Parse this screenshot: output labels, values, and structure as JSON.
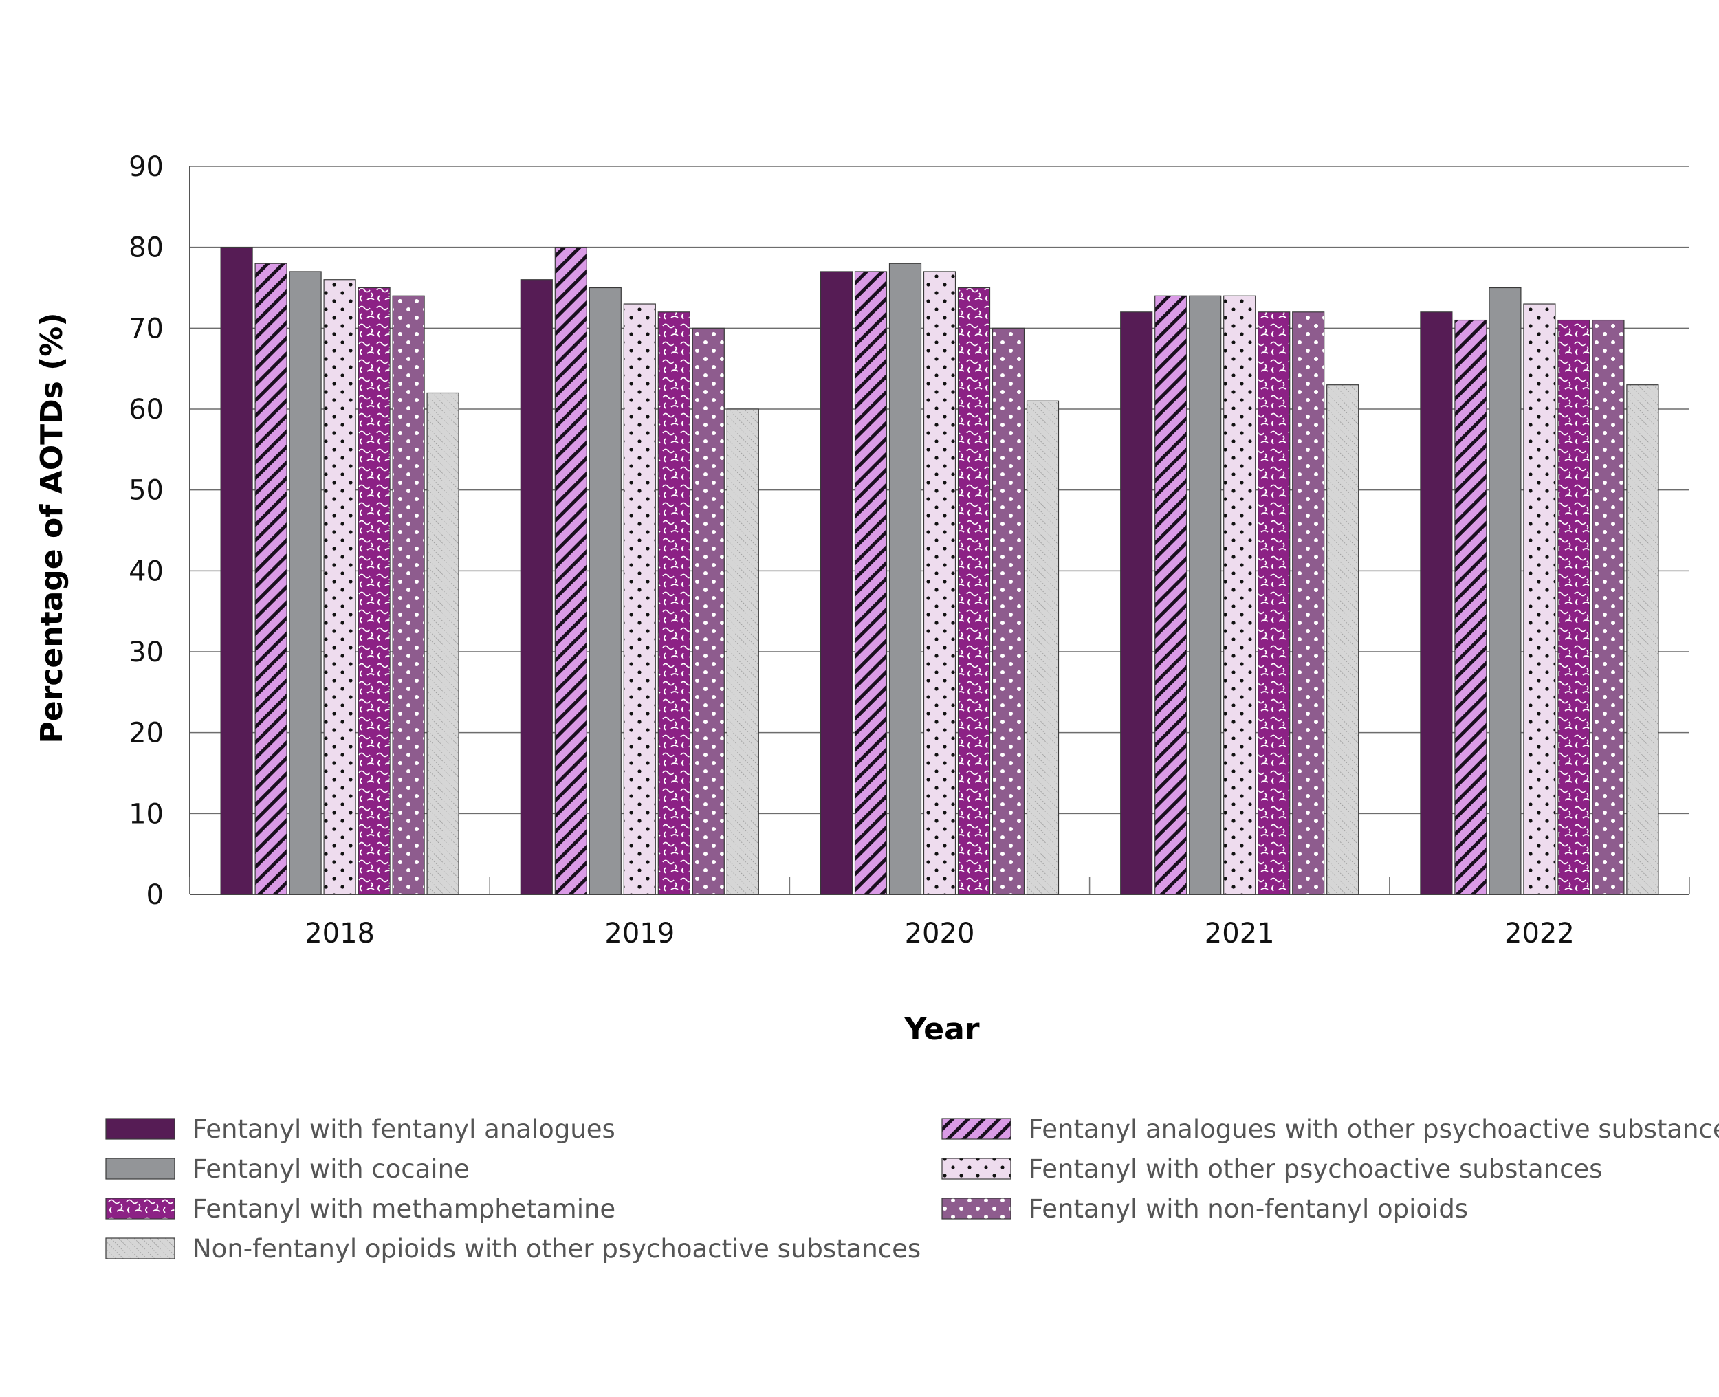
{
  "chart_data": {
    "type": "bar",
    "title": "",
    "xlabel": "Year",
    "ylabel": "Percentage of AOTDs (%)",
    "ylim": [
      0,
      90
    ],
    "yticks": [
      0,
      10,
      20,
      30,
      40,
      50,
      60,
      70,
      80,
      90
    ],
    "grid": true,
    "legend_position": "bottom",
    "categories": [
      "2018",
      "2019",
      "2020",
      "2021",
      "2022"
    ],
    "series": [
      {
        "name": "Fentanyl with fentanyl analogues",
        "values": [
          80,
          76,
          77,
          72,
          72
        ],
        "color": "#561C55",
        "pattern": "solid"
      },
      {
        "name": "Fentanyl analogues with other psychoactive substances",
        "values": [
          78,
          80,
          77,
          74,
          71
        ],
        "color": "#DA9BE6",
        "pattern": "diagonal-stripes"
      },
      {
        "name": "Fentanyl with cocaine",
        "values": [
          77,
          75,
          78,
          74,
          75
        ],
        "color": "#939598",
        "pattern": "solid"
      },
      {
        "name": "Fentanyl with other psychoactive substances",
        "values": [
          76,
          73,
          77,
          74,
          73
        ],
        "color": "#EEDCEE",
        "pattern": "dots"
      },
      {
        "name": "Fentanyl with methamphetamine",
        "values": [
          75,
          72,
          75,
          72,
          71
        ],
        "color": "#8C2185",
        "pattern": "squiggles"
      },
      {
        "name": "Fentanyl with non-fentanyl opioids",
        "values": [
          74,
          70,
          70,
          72,
          71
        ],
        "color": "#8E5C8E",
        "pattern": "white-dots"
      },
      {
        "name": "Non-fentanyl opioids with other psychoactive substances",
        "values": [
          62,
          60,
          61,
          63,
          63
        ],
        "color": "#D6D6D6",
        "pattern": "fine-hatch"
      }
    ]
  },
  "legend": {
    "left_column": [
      "Fentanyl with fentanyl analogues",
      "Fentanyl with cocaine",
      "Fentanyl with methamphetamine",
      "Non-fentanyl opioids with other psychoactive substances"
    ],
    "right_column": [
      "Fentanyl analogues with other psychoactive substances",
      "Fentanyl with other psychoactive substances",
      "Fentanyl with non-fentanyl opioids"
    ]
  }
}
